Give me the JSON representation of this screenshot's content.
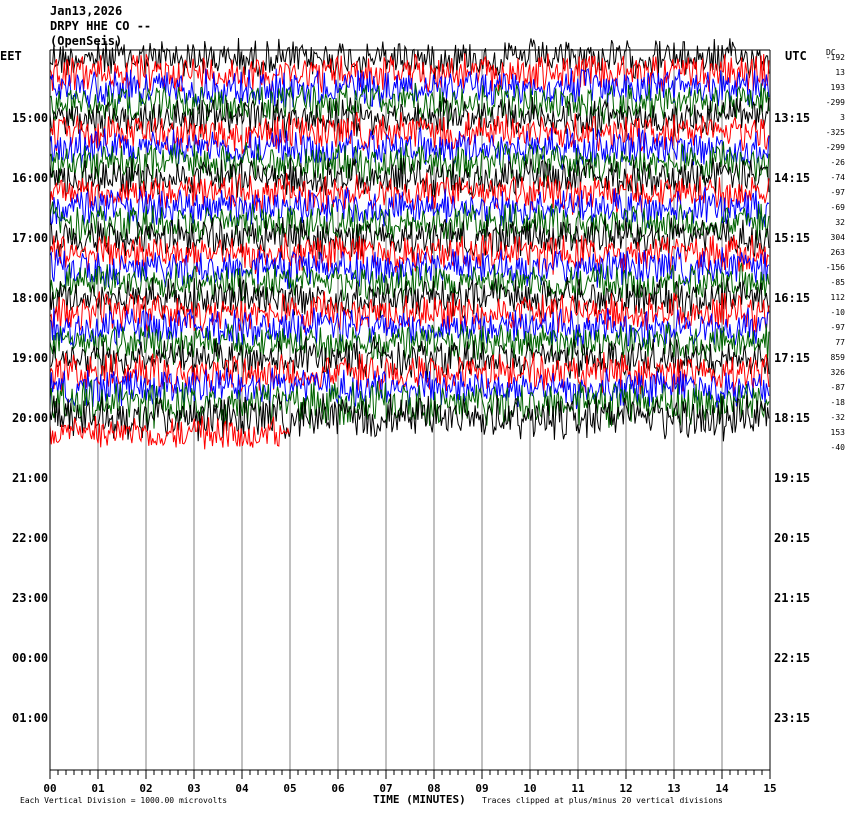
{
  "header": {
    "date": "Jan13,2026",
    "station": "DRPY HHE CO --",
    "network": "(OpenSeis)"
  },
  "left_axis_title": "EET",
  "right_axis_title": "UTC",
  "dc_title": "DC",
  "footer": {
    "scale": "Each Vertical Division = 1000.00 microvolts",
    "xlabel": "TIME (MINUTES)",
    "clip": "Traces clipped at plus/minus 20 vertical divisions"
  },
  "colors": {
    "traces": [
      "#000000",
      "#ff0000",
      "#0000ff",
      "#006400"
    ],
    "grid": "#808080",
    "background": "#ffffff"
  },
  "chart_data": {
    "type": "line",
    "subtype": "helicorder",
    "x": {
      "label": "TIME (MINUTES)",
      "range": [
        0,
        15
      ],
      "ticks": [
        "00",
        "01",
        "02",
        "03",
        "04",
        "05",
        "06",
        "07",
        "08",
        "09",
        "10",
        "11",
        "12",
        "13",
        "14",
        "15"
      ]
    },
    "left_hour_labels": [
      "15:00",
      "16:00",
      "17:00",
      "18:00",
      "19:00",
      "20:00",
      "21:00",
      "22:00",
      "23:00",
      "00:00",
      "01:00"
    ],
    "right_hour_labels": [
      "13:15",
      "14:15",
      "15:15",
      "16:15",
      "17:15",
      "18:15",
      "19:15",
      "20:15",
      "21:15",
      "22:15",
      "23:15"
    ],
    "traces_per_hour": 4,
    "minutes_per_trace": 15,
    "recorded_traces": 26,
    "last_trace_minutes": 5,
    "dc_offsets": [
      "-192",
      "13",
      "193",
      "-299",
      "3",
      "-325",
      "-299",
      "-26",
      "-74",
      "-97",
      "-69",
      "32",
      "304",
      "263",
      "-156",
      "-85",
      "112",
      "-10",
      "-97",
      "77",
      "859",
      "326",
      "-87",
      "-18",
      "-32",
      "153",
      "-40"
    ]
  }
}
